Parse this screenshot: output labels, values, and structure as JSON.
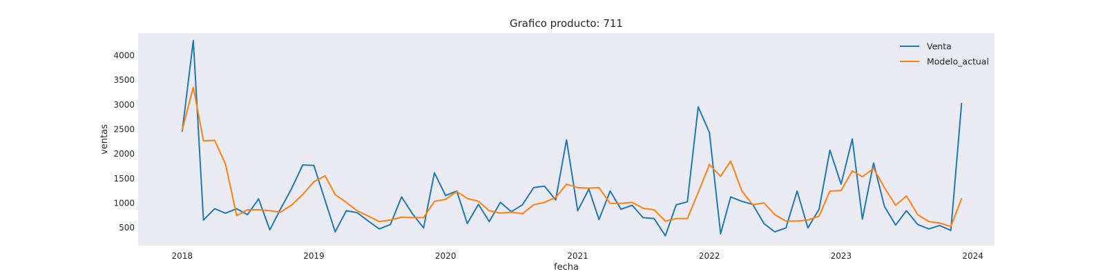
{
  "chart_data": {
    "type": "line",
    "title": "Grafico producto: 711",
    "xlabel": "fecha",
    "ylabel": "ventas",
    "x_type": "date",
    "xlim": [
      "2017-09-01",
      "2024-03-01"
    ],
    "ylim": [
      130,
      4450
    ],
    "x_ticks": [
      "2018-01-01",
      "2019-01-01",
      "2020-01-01",
      "2021-01-01",
      "2022-01-01",
      "2023-01-01",
      "2024-01-01"
    ],
    "x_tick_labels": [
      "2018",
      "2019",
      "2020",
      "2021",
      "2022",
      "2023",
      "2024"
    ],
    "y_ticks": [
      500,
      1000,
      1500,
      2000,
      2500,
      3000,
      3500,
      4000
    ],
    "y_tick_labels": [
      "500",
      "1000",
      "1500",
      "2000",
      "2500",
      "3000",
      "3500",
      "4000"
    ],
    "grid": false,
    "legend_position": "top-right",
    "x": [
      "2018-01-01",
      "2018-02-01",
      "2018-03-01",
      "2018-04-01",
      "2018-05-01",
      "2018-06-01",
      "2018-07-01",
      "2018-08-01",
      "2018-09-01",
      "2018-10-01",
      "2018-11-01",
      "2018-12-01",
      "2019-01-01",
      "2019-02-01",
      "2019-03-01",
      "2019-04-01",
      "2019-05-01",
      "2019-06-01",
      "2019-07-01",
      "2019-08-01",
      "2019-09-01",
      "2019-10-01",
      "2019-11-01",
      "2019-12-01",
      "2020-01-01",
      "2020-02-01",
      "2020-03-01",
      "2020-04-01",
      "2020-05-01",
      "2020-06-01",
      "2020-07-01",
      "2020-08-01",
      "2020-09-01",
      "2020-10-01",
      "2020-11-01",
      "2020-12-01",
      "2021-01-01",
      "2021-02-01",
      "2021-03-01",
      "2021-04-01",
      "2021-05-01",
      "2021-06-01",
      "2021-07-01",
      "2021-08-01",
      "2021-09-01",
      "2021-10-01",
      "2021-11-01",
      "2021-12-01",
      "2022-01-01",
      "2022-02-01",
      "2022-03-01",
      "2022-04-01",
      "2022-05-01",
      "2022-06-01",
      "2022-07-01",
      "2022-08-01",
      "2022-09-01",
      "2022-10-01",
      "2022-11-01",
      "2022-12-01",
      "2023-01-01",
      "2023-02-01",
      "2023-03-01",
      "2023-04-01",
      "2023-05-01",
      "2023-06-01",
      "2023-07-01",
      "2023-08-01",
      "2023-09-01",
      "2023-10-01",
      "2023-11-01",
      "2023-12-01"
    ],
    "series": [
      {
        "name": "Venta",
        "color": "#1f77b4",
        "values": [
          2450,
          4300,
          650,
          880,
          790,
          880,
          760,
          1080,
          450,
          880,
          1300,
          1770,
          1760,
          1050,
          410,
          840,
          800,
          630,
          470,
          560,
          1120,
          780,
          490,
          1610,
          1150,
          1240,
          580,
          970,
          620,
          1010,
          820,
          960,
          1310,
          1340,
          1060,
          2280,
          840,
          1280,
          660,
          1240,
          870,
          950,
          700,
          680,
          330,
          960,
          1020,
          2950,
          2430,
          370,
          1120,
          1030,
          970,
          580,
          410,
          490,
          1240,
          490,
          870,
          2070,
          1380,
          2300,
          670,
          1810,
          930,
          550,
          840,
          560,
          470,
          540,
          440,
          3030
        ]
      },
      {
        "name": "Modelo_actual",
        "color": "#ff7f0e",
        "values": [
          2480,
          3350,
          2260,
          2270,
          1790,
          740,
          860,
          860,
          840,
          810,
          960,
          1170,
          1430,
          1550,
          1170,
          1010,
          840,
          730,
          620,
          650,
          710,
          700,
          700,
          1030,
          1070,
          1230,
          1090,
          1030,
          840,
          790,
          810,
          780,
          960,
          1010,
          1110,
          1380,
          1310,
          1300,
          1310,
          990,
          990,
          1010,
          890,
          860,
          630,
          680,
          680,
          1210,
          1780,
          1540,
          1850,
          1240,
          960,
          1000,
          760,
          630,
          630,
          650,
          730,
          1240,
          1250,
          1650,
          1530,
          1700,
          1310,
          950,
          1140,
          760,
          620,
          590,
          520,
          1090
        ]
      }
    ]
  }
}
